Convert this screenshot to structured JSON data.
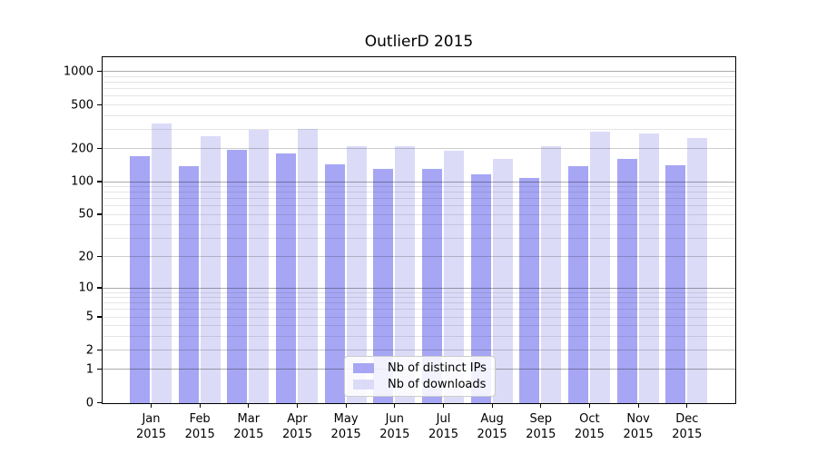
{
  "title": "OutlierD 2015",
  "legend": {
    "items": [
      {
        "label": "Nb of distinct IPs"
      },
      {
        "label": "Nb of downloads"
      }
    ]
  },
  "chart_data": {
    "type": "bar",
    "title": "OutlierD 2015",
    "categories": [
      "Jan",
      "Feb",
      "Mar",
      "Apr",
      "May",
      "Jun",
      "Jul",
      "Aug",
      "Sep",
      "Oct",
      "Nov",
      "Dec"
    ],
    "category_year": "2015",
    "series": [
      {
        "name": "Nb of distinct IPs",
        "color": "#a6a6f4",
        "values": [
          172,
          140,
          198,
          183,
          146,
          132,
          131,
          118,
          109,
          140,
          164,
          142
        ]
      },
      {
        "name": "Nb of downloads",
        "color": "#dbdbf8",
        "values": [
          340,
          263,
          299,
          303,
          211,
          214,
          192,
          163,
          211,
          286,
          277,
          250
        ]
      }
    ],
    "xlabel": "",
    "ylabel": "",
    "yscale": "log10(value+1)",
    "ylim": [
      0,
      1360
    ],
    "yticks": [
      0,
      1,
      2,
      5,
      10,
      20,
      50,
      100,
      200,
      500,
      1000
    ],
    "ygrid_major": [
      1,
      10,
      100,
      1000
    ],
    "ygrid_minor": [
      2,
      3,
      4,
      6,
      7,
      8,
      9,
      20,
      30,
      40,
      60,
      70,
      80,
      90,
      200,
      300,
      400,
      600,
      700,
      800,
      900
    ],
    "ygrid_minor_labeled": [
      2,
      5,
      20,
      50,
      200,
      500
    ],
    "grid": "horizontal, drawn over bars",
    "legend_position": "inside plot, lower center",
    "axis_color": "#000000",
    "grid_major_color": "#aaaaaa",
    "grid_minor_color": "#e6e6e6"
  }
}
